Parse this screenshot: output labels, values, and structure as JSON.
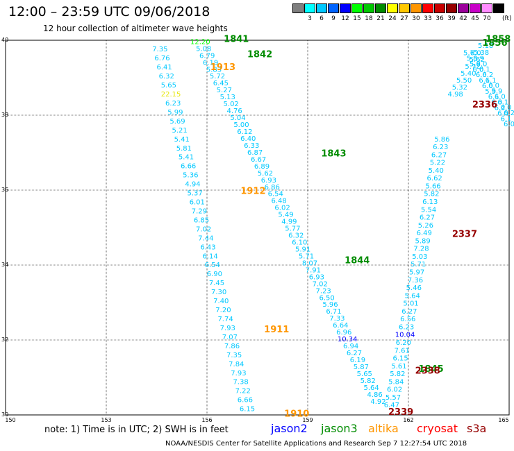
{
  "header": {
    "title": "12:00 – 23:59 UTC 09/06/2018",
    "subtitle": "12 hour collection of altimeter wave heights"
  },
  "legend": {
    "unit": "(ft)",
    "items": [
      {
        "label": "",
        "color": "#7f7f7f"
      },
      {
        "label": "3",
        "color": "#00ffff"
      },
      {
        "label": "6",
        "color": "#00c8ff"
      },
      {
        "label": "9",
        "color": "#0064ff"
      },
      {
        "label": "12",
        "color": "#0000ff"
      },
      {
        "label": "15",
        "color": "#00ff00"
      },
      {
        "label": "18",
        "color": "#00c800"
      },
      {
        "label": "21",
        "color": "#008c00"
      },
      {
        "label": "24",
        "color": "#ffff00"
      },
      {
        "label": "27",
        "color": "#ffc800"
      },
      {
        "label": "30",
        "color": "#ff9600"
      },
      {
        "label": "33",
        "color": "#ff0000"
      },
      {
        "label": "36",
        "color": "#c80000"
      },
      {
        "label": "39",
        "color": "#960000"
      },
      {
        "label": "42",
        "color": "#9b009b"
      },
      {
        "label": "45",
        "color": "#c800c8"
      },
      {
        "label": "70",
        "color": "#ff8cff"
      },
      {
        "label": "",
        "color": "#000000"
      }
    ]
  },
  "map": {
    "lon_ticks": [
      "150",
      "153",
      "156",
      "159",
      "162",
      "165"
    ],
    "lat_ticks": [
      "30",
      "32",
      "34",
      "36",
      "38",
      "40"
    ],
    "lon_range": [
      150,
      165
    ],
    "lat_range": [
      30,
      40
    ],
    "tracks": [
      {
        "color": "#00c8ff",
        "start": [
          154.6,
          39.7
        ],
        "end": [
          157.2,
          30.1
        ],
        "values": [
          "7.35",
          "6.76",
          "6.41",
          "6.32",
          "5.65",
          "22.15",
          "6.23",
          "5.99",
          "5.69",
          "5.21",
          "5.41",
          "5.81",
          "5.41",
          "6.66",
          "5.36",
          "4.94",
          "5.37",
          "6.01",
          "7.29",
          "6.85",
          "7.02",
          "7.44",
          "6.43",
          "6.14",
          "6.54",
          "6.90",
          "7.45",
          "7.30",
          "7.40",
          "7.20",
          "7.74",
          "7.93",
          "7.07",
          "7.86",
          "7.35",
          "7.84",
          "7.93",
          "7.38",
          "7.22",
          "6.66",
          "6.15"
        ]
      },
      {
        "color": "#00c8ff",
        "start": [
          155.8,
          39.9
        ],
        "end": [
          161.1,
          30.3
        ],
        "values": [
          "12.20",
          "5.08",
          "6.79",
          "6.19",
          "5.83",
          "5.72",
          "6.45",
          "5.27",
          "5.13",
          "5.02",
          "4.76",
          "5.04",
          "5.00",
          "6.12",
          "6.40",
          "6.33",
          "6.87",
          "6.67",
          "6.89",
          "5.62",
          "6.93",
          "6.86",
          "6.54",
          "6.48",
          "6.02",
          "5.49",
          "4.99",
          "5.77",
          "6.32",
          "6.10",
          "5.91",
          "5.71",
          "8.07",
          "7.91",
          "6.93",
          "7.02",
          "7.23",
          "6.50",
          "5.96",
          "6.71",
          "7.33",
          "6.64",
          "6.96",
          "10.34",
          "6.94",
          "6.27",
          "6.19",
          "5.87",
          "5.65",
          "5.82",
          "5.64",
          "4.86",
          "4.92"
        ]
      },
      {
        "color": "#00c8ff",
        "start": [
          161.5,
          30.2
        ],
        "end": [
          163.0,
          37.3
        ],
        "values": [
          "6.47",
          "5.57",
          "6.02",
          "5.84",
          "5.82",
          "5.61",
          "6.15",
          "7.61",
          "6.20",
          "10.04",
          "6.23",
          "6.56",
          "6.27",
          "5.01",
          "5.64",
          "5.46",
          "7.36",
          "5.97",
          "5.71",
          "5.03",
          "7.28",
          "5.89",
          "6.49",
          "5.26",
          "6.27",
          "5.54",
          "6.13",
          "5.82",
          "5.66",
          "6.62",
          "5.40",
          "5.22",
          "6.27",
          "6.23",
          "5.86"
        ]
      },
      {
        "color": "#00c8ff",
        "start": [
          163.4,
          38.5
        ],
        "end": [
          164.3,
          39.8
        ],
        "values": [
          "4.98",
          "5.32",
          "5.50",
          "5.40",
          "5.72",
          "5.62",
          "5.38",
          "5.18"
        ]
      },
      {
        "color": "#00c8ff",
        "start": [
          163.8,
          39.6
        ],
        "end": [
          165.0,
          37.7
        ],
        "values": [
          "5.7",
          "5.8",
          "5.9",
          "6.0",
          "6.0",
          "6.1",
          "6.0",
          "5.9",
          "6.1",
          "6.0",
          "6.2",
          "6.0",
          "6.1",
          "6.0"
        ]
      },
      {
        "color": "#00c8ff",
        "start": [
          164.0,
          39.6
        ],
        "end": [
          165.0,
          38.0
        ],
        "values": [
          "6.0",
          "5.9",
          "6.0",
          "6.1",
          "6.2",
          "6.1",
          "6.0",
          "5.9",
          "6.0",
          "6.1",
          "6.0",
          "6.2"
        ]
      }
    ],
    "time_labels": [
      {
        "text": "1841",
        "color": "#008c00",
        "lon": 156.5,
        "lat": 39.95
      },
      {
        "text": "1842",
        "color": "#008c00",
        "lon": 157.2,
        "lat": 39.55
      },
      {
        "text": "1843",
        "color": "#008c00",
        "lon": 159.4,
        "lat": 36.9
      },
      {
        "text": "1844",
        "color": "#008c00",
        "lon": 160.1,
        "lat": 34.05
      },
      {
        "text": "1845",
        "color": "#008c00",
        "lon": 162.3,
        "lat": 31.15
      },
      {
        "text": "1858",
        "color": "#008c00",
        "lon": 164.3,
        "lat": 39.95
      },
      {
        "text": "1856",
        "color": "#008c00",
        "lon": 164.2,
        "lat": 39.85
      },
      {
        "text": "1913",
        "color": "#ff9600",
        "lon": 156.1,
        "lat": 39.2
      },
      {
        "text": "1912",
        "color": "#ff9600",
        "lon": 157.0,
        "lat": 35.9
      },
      {
        "text": "1911",
        "color": "#ff9600",
        "lon": 157.7,
        "lat": 32.2
      },
      {
        "text": "1910",
        "color": "#ff9600",
        "lon": 158.3,
        "lat": 29.95
      },
      {
        "text": "2336",
        "color": "#960000",
        "lon": 163.9,
        "lat": 38.2
      },
      {
        "text": "2337",
        "color": "#960000",
        "lon": 163.3,
        "lat": 34.75
      },
      {
        "text": "2338",
        "color": "#960000",
        "lon": 162.2,
        "lat": 31.1
      },
      {
        "text": "2339",
        "color": "#960000",
        "lon": 161.4,
        "lat": 30.0
      }
    ]
  },
  "footer": {
    "note": "note:  1) Time is in UTC;  2) SWH is in feet",
    "satellites": [
      {
        "name": "jason2",
        "color": "#0000ff"
      },
      {
        "name": "jason3",
        "color": "#008c00"
      },
      {
        "name": "altika",
        "color": "#ff9600"
      },
      {
        "name": "cryosat",
        "color": "#ff0000"
      },
      {
        "name": "s3a",
        "color": "#960000"
      }
    ],
    "credit": "NOAA/NESDIS Center for Satellite Applications and Research   Sep  7 12:27:54 UTC 2018"
  }
}
